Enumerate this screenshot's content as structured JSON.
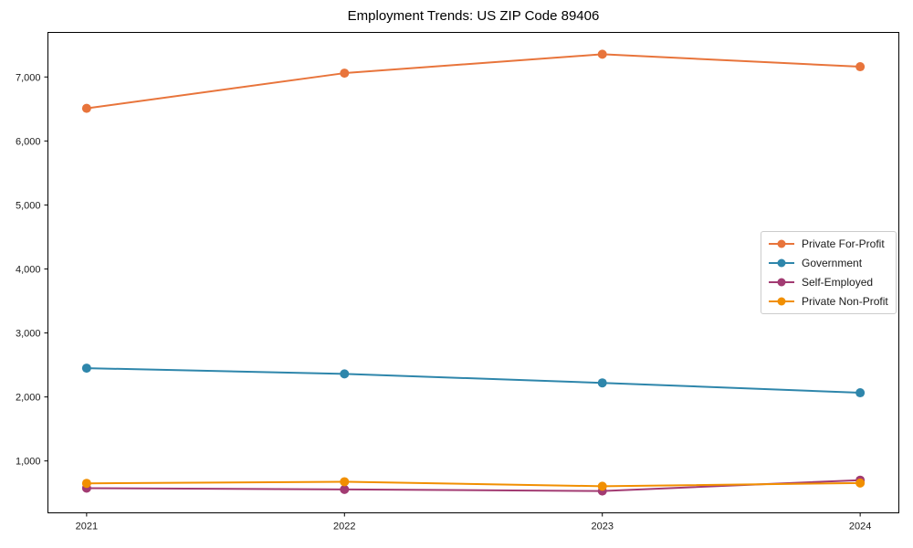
{
  "chart_data": {
    "type": "line",
    "title": "Employment Trends: US ZIP Code 89406",
    "xlabel": "",
    "ylabel": "",
    "x": [
      2021,
      2022,
      2023,
      2024
    ],
    "xtick_labels": [
      "2021",
      "2022",
      "2023",
      "2024"
    ],
    "yticks": [
      1000,
      2000,
      3000,
      4000,
      5000,
      6000,
      7000
    ],
    "ytick_labels": [
      "1,000",
      "2,000",
      "3,000",
      "4,000",
      "5,000",
      "6,000",
      "7,000"
    ],
    "series": [
      {
        "name": "Private For-Profit",
        "color": "#E8743B",
        "values": [
          6510,
          7060,
          7355,
          7160
        ]
      },
      {
        "name": "Government",
        "color": "#2E86AB",
        "values": [
          2450,
          2360,
          2220,
          2065
        ]
      },
      {
        "name": "Self-Employed",
        "color": "#A23B72",
        "values": [
          575,
          555,
          530,
          700
        ]
      },
      {
        "name": "Private Non-Profit",
        "color": "#F18F01",
        "values": [
          650,
          675,
          605,
          655
        ]
      }
    ],
    "xlim": [
      2020.85,
      2024.15
    ],
    "ylim": [
      189,
      7696
    ],
    "grid": false,
    "legend_position": "center-right",
    "marker": "circle",
    "axis_color": "#000000",
    "tick_text_color": "#1a1a1a",
    "background": "#ffffff"
  }
}
